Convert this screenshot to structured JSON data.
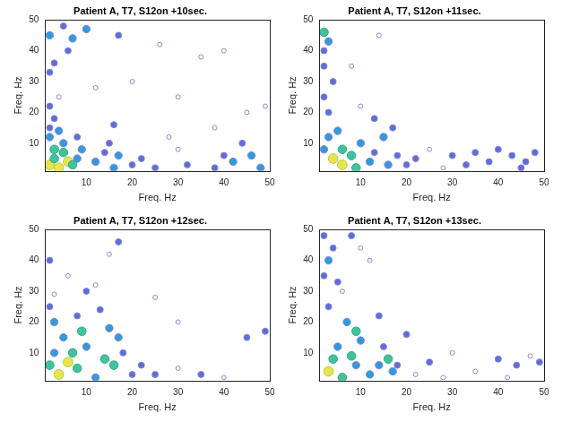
{
  "chart_data": [
    {
      "type": "scatter",
      "title": "Patient A, T7, S12on +10sec.",
      "x_label": "Freq. Hz",
      "y_label": "Freq. Hz",
      "xlim": [
        1,
        50
      ],
      "ylim": [
        1,
        50
      ],
      "xticks": [
        10,
        20,
        30,
        40,
        50
      ],
      "yticks": [
        10,
        20,
        30,
        40,
        50
      ],
      "x": [
        2,
        3,
        4,
        5,
        6,
        7,
        8,
        3,
        5,
        9,
        2,
        4,
        8,
        2,
        3,
        2,
        4,
        2,
        5,
        7,
        10,
        6,
        3,
        2,
        12,
        14,
        16,
        17,
        15,
        16,
        17,
        20,
        22,
        25,
        28,
        30,
        32,
        35,
        38,
        40,
        42,
        44,
        46,
        48,
        45,
        49,
        12,
        20,
        26,
        40,
        38,
        30
      ],
      "y": [
        3,
        5,
        2,
        7,
        4,
        3,
        5,
        8,
        10,
        8,
        12,
        14,
        12,
        15,
        18,
        22,
        25,
        45,
        48,
        44,
        47,
        40,
        36,
        33,
        4,
        7,
        2,
        6,
        10,
        16,
        45,
        3,
        5,
        2,
        12,
        8,
        3,
        38,
        2,
        6,
        4,
        10,
        6,
        2,
        20,
        22,
        28,
        30,
        42,
        40,
        15,
        25
      ],
      "values": [
        5,
        4,
        5,
        4,
        5,
        4,
        3,
        4,
        3,
        3,
        3,
        3,
        2,
        2,
        2,
        2,
        1,
        3,
        2,
        3,
        3,
        2,
        2,
        2,
        3,
        2,
        3,
        3,
        2,
        2,
        2,
        2,
        2,
        2,
        1,
        1,
        2,
        1,
        2,
        2,
        3,
        2,
        3,
        3,
        1,
        1,
        1,
        1,
        1,
        1,
        1,
        1
      ]
    },
    {
      "type": "scatter",
      "title": "Patient A, T7, S12on +11sec.",
      "x_label": "Freq. Hz",
      "y_label": "Freq. Hz",
      "xlim": [
        1,
        50
      ],
      "ylim": [
        1,
        50
      ],
      "xticks": [
        10,
        20,
        30,
        40,
        50
      ],
      "yticks": [
        10,
        20,
        30,
        40,
        50
      ],
      "x": [
        2,
        3,
        2,
        2,
        4,
        2,
        3,
        5,
        3,
        2,
        4,
        6,
        8,
        6,
        9,
        10,
        12,
        13,
        15,
        16,
        17,
        18,
        13,
        10,
        14,
        22,
        25,
        30,
        33,
        35,
        38,
        40,
        43,
        46,
        48,
        45,
        20,
        28,
        8
      ],
      "y": [
        46,
        43,
        40,
        35,
        30,
        25,
        20,
        14,
        12,
        8,
        5,
        3,
        6,
        8,
        2,
        10,
        4,
        7,
        12,
        3,
        15,
        6,
        18,
        22,
        45,
        5,
        8,
        6,
        3,
        7,
        4,
        8,
        6,
        4,
        7,
        2,
        3,
        2,
        35
      ],
      "values": [
        4,
        3,
        2,
        2,
        2,
        2,
        2,
        3,
        3,
        3,
        5,
        5,
        4,
        4,
        4,
        3,
        3,
        2,
        3,
        3,
        2,
        2,
        2,
        1,
        1,
        2,
        1,
        2,
        2,
        2,
        2,
        2,
        2,
        2,
        2,
        2,
        2,
        1,
        1
      ]
    },
    {
      "type": "scatter",
      "title": "Patient A, T7, S12on +12sec.",
      "x_label": "Freq. Hz",
      "y_label": "Freq. Hz",
      "xlim": [
        1,
        50
      ],
      "ylim": [
        1,
        50
      ],
      "xticks": [
        10,
        20,
        30,
        40,
        50
      ],
      "yticks": [
        10,
        20,
        30,
        40,
        50
      ],
      "x": [
        2,
        3,
        2,
        3,
        5,
        3,
        2,
        4,
        6,
        8,
        7,
        9,
        10,
        12,
        14,
        16,
        15,
        17,
        18,
        17,
        15,
        10,
        12,
        20,
        22,
        25,
        30,
        35,
        40,
        45,
        49,
        25,
        30,
        6,
        13,
        8
      ],
      "y": [
        40,
        29,
        25,
        20,
        15,
        10,
        6,
        3,
        7,
        5,
        10,
        17,
        12,
        2,
        8,
        6,
        18,
        15,
        10,
        46,
        42,
        30,
        32,
        3,
        6,
        3,
        5,
        3,
        2,
        15,
        17,
        28,
        20,
        35,
        24,
        22
      ],
      "values": [
        2,
        1,
        2,
        3,
        3,
        3,
        4,
        5,
        5,
        4,
        4,
        4,
        3,
        3,
        4,
        4,
        3,
        3,
        2,
        2,
        1,
        2,
        1,
        2,
        2,
        2,
        1,
        2,
        1,
        2,
        2,
        1,
        1,
        1,
        2,
        2
      ]
    },
    {
      "type": "scatter",
      "title": "Patient A, T7, S12on +13sec.",
      "x_label": "Freq. Hz",
      "y_label": "Freq. Hz",
      "xlim": [
        1,
        50
      ],
      "ylim": [
        1,
        50
      ],
      "xticks": [
        10,
        20,
        30,
        40,
        50
      ],
      "yticks": [
        10,
        20,
        30,
        40,
        50
      ],
      "x": [
        2,
        4,
        3,
        2,
        5,
        3,
        6,
        8,
        10,
        7,
        9,
        10,
        8,
        9,
        4,
        3,
        6,
        5,
        12,
        14,
        16,
        17,
        15,
        18,
        20,
        22,
        25,
        30,
        35,
        40,
        44,
        47,
        49,
        42,
        28,
        12,
        14
      ],
      "y": [
        48,
        44,
        40,
        35,
        33,
        25,
        30,
        48,
        44,
        20,
        17,
        14,
        9,
        6,
        8,
        4,
        2,
        12,
        3,
        6,
        8,
        4,
        12,
        6,
        16,
        3,
        7,
        10,
        4,
        8,
        6,
        9,
        7,
        2,
        2,
        40,
        22
      ],
      "values": [
        2,
        2,
        3,
        2,
        2,
        2,
        1,
        2,
        1,
        3,
        4,
        3,
        4,
        3,
        4,
        5,
        4,
        3,
        3,
        3,
        4,
        3,
        2,
        2,
        2,
        1,
        2,
        1,
        1,
        2,
        2,
        1,
        2,
        1,
        1,
        1,
        2
      ]
    }
  ]
}
